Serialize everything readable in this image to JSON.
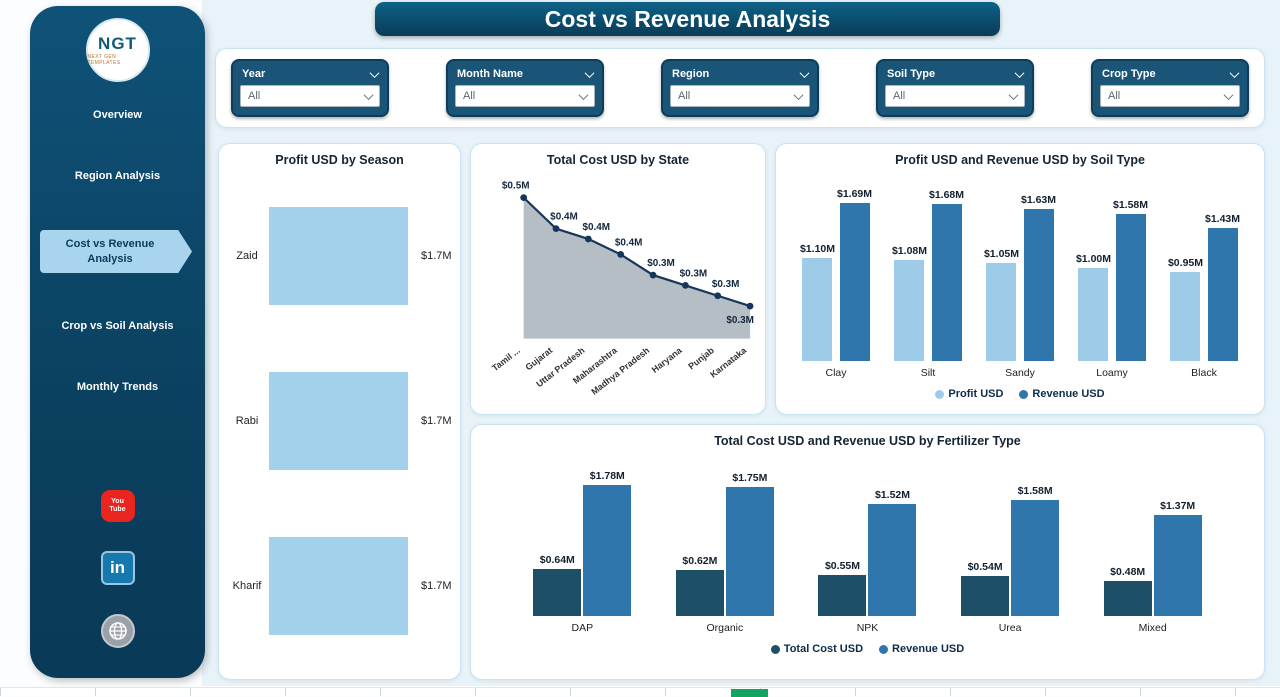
{
  "app": {
    "title": "Cost vs Revenue Analysis"
  },
  "sidebar": {
    "logo": {
      "text": "NGT",
      "subtext": "NEXT GEN TEMPLATES"
    },
    "items": [
      {
        "label": "Overview",
        "active": false
      },
      {
        "label": "Region Analysis",
        "active": false
      },
      {
        "label": "Cost vs Revenue Analysis",
        "active": true
      },
      {
        "label": "Crop vs Soil Analysis",
        "active": false
      },
      {
        "label": "Monthly Trends",
        "active": false
      }
    ],
    "social": {
      "youtube": {
        "line1": "You",
        "line2": "Tube"
      },
      "linkedin": {
        "label": "in"
      },
      "website": {
        "label": ""
      }
    }
  },
  "filters": [
    {
      "label": "Year",
      "value": "All"
    },
    {
      "label": "Month Name",
      "value": "All"
    },
    {
      "label": "Region",
      "value": "All"
    },
    {
      "label": "Soil Type",
      "value": "All"
    },
    {
      "label": "Crop Type",
      "value": "All"
    }
  ],
  "colors": {
    "sidebar": "#0d4a6b",
    "active_nav": "#a8d4ee",
    "profit": "#9dcbe8",
    "revenue": "#2f76ad",
    "cost": "#1d4f66",
    "area_fill": "#b5bec5",
    "area_line": "#16365c",
    "page_tab_active": "#15a362"
  },
  "chart_data": [
    {
      "type": "bar",
      "orientation": "horizontal",
      "title": "Profit USD by Season",
      "categories": [
        "Zaid",
        "Rabi",
        "Kharif"
      ],
      "values": [
        1.7,
        1.7,
        1.7
      ],
      "labels": [
        "$1.7M",
        "$1.7M",
        "$1.7M"
      ],
      "xlim": [
        0,
        1.8
      ],
      "color": "#a3d0ea"
    },
    {
      "type": "area",
      "title": "Total Cost USD by State",
      "categories": [
        "Tamil ...",
        "Gujarat",
        "Uttar Pradesh",
        "Maharashtra",
        "Madhya Pradesh",
        "Haryana",
        "Punjab",
        "Karnataka"
      ],
      "values": [
        0.5,
        0.44,
        0.42,
        0.39,
        0.35,
        0.33,
        0.31,
        0.29
      ],
      "labels": [
        "$0.5M",
        "$0.4M",
        "$0.4M",
        "$0.4M",
        "$0.3M",
        "$0.3M",
        "$0.3M",
        "$0.3M"
      ],
      "fill": "#b5bec5",
      "line": "#16365c"
    },
    {
      "type": "bar",
      "title": "Profit USD and Revenue USD by Soil Type",
      "categories": [
        "Clay",
        "Silt",
        "Sandy",
        "Loamy",
        "Black"
      ],
      "series": [
        {
          "name": "Profit USD",
          "values": [
            1.1,
            1.08,
            1.05,
            1.0,
            0.95
          ],
          "labels": [
            "$1.10M",
            "$1.08M",
            "$1.05M",
            "$1.00M",
            "$0.95M"
          ],
          "color": "#9dcbe8"
        },
        {
          "name": "Revenue USD",
          "values": [
            1.69,
            1.68,
            1.63,
            1.58,
            1.43
          ],
          "labels": [
            "$1.69M",
            "$1.68M",
            "$1.63M",
            "$1.58M",
            "$1.43M"
          ],
          "color": "#2f76ad"
        }
      ],
      "ylim": [
        0,
        1.8
      ],
      "legend_position": "bottom"
    },
    {
      "type": "bar",
      "title": "Total Cost USD and Revenue USD by Fertilizer Type",
      "categories": [
        "DAP",
        "Organic",
        "NPK",
        "Urea",
        "Mixed"
      ],
      "series": [
        {
          "name": "Total Cost USD",
          "values": [
            0.64,
            0.62,
            0.55,
            0.54,
            0.48
          ],
          "labels": [
            "$0.64M",
            "$0.62M",
            "$0.55M",
            "$0.54M",
            "$0.48M"
          ],
          "color": "#1d4f66"
        },
        {
          "name": "Revenue USD",
          "values": [
            1.78,
            1.75,
            1.52,
            1.58,
            1.37
          ],
          "labels": [
            "$1.78M",
            "$1.75M",
            "$1.52M",
            "$1.58M",
            "$1.37M"
          ],
          "color": "#2f76ad"
        }
      ],
      "ylim": [
        0,
        1.9
      ],
      "legend_position": "bottom"
    }
  ]
}
